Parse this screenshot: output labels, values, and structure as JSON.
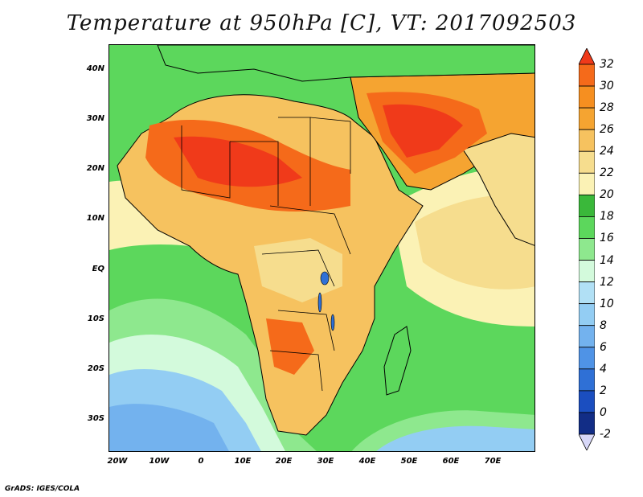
{
  "title": "Temperature at 950hPa [C], VT: 2017092503",
  "credit": "GrADS: IGES/COLA",
  "map": {
    "variable": "Temperature at 950hPa",
    "units": "C",
    "valid_time": "2017092503",
    "lon_range": [
      -23,
      80
    ],
    "lat_range": [
      -36,
      45
    ],
    "lat_labels": [
      "40N",
      "30N",
      "20N",
      "10N",
      "EQ",
      "10S",
      "20S",
      "30S"
    ],
    "lon_labels": [
      "20W",
      "10W",
      "0",
      "10E",
      "20E",
      "30E",
      "40E",
      "50E",
      "60E",
      "70E"
    ],
    "ocean_color": "#58d258",
    "land_color": "#f4c868"
  },
  "colorbar": {
    "labels": [
      "32",
      "30",
      "28",
      "26",
      "24",
      "22",
      "20",
      "18",
      "16",
      "14",
      "12",
      "10",
      "8",
      "6",
      "4",
      "2",
      "0",
      "-2"
    ],
    "colors": [
      "#f03a1a",
      "#f56a1a",
      "#f68f20",
      "#f5a431",
      "#f6c25f",
      "#f6dd8e",
      "#fbf2b5",
      "#3ab83a",
      "#5cd75c",
      "#8ee88e",
      "#d3fadc",
      "#b1e0f5",
      "#93cdf3",
      "#73b2ee",
      "#4f93e6",
      "#2f70d6",
      "#1b4ec0",
      "#122d86",
      "#d8d8f8"
    ]
  }
}
